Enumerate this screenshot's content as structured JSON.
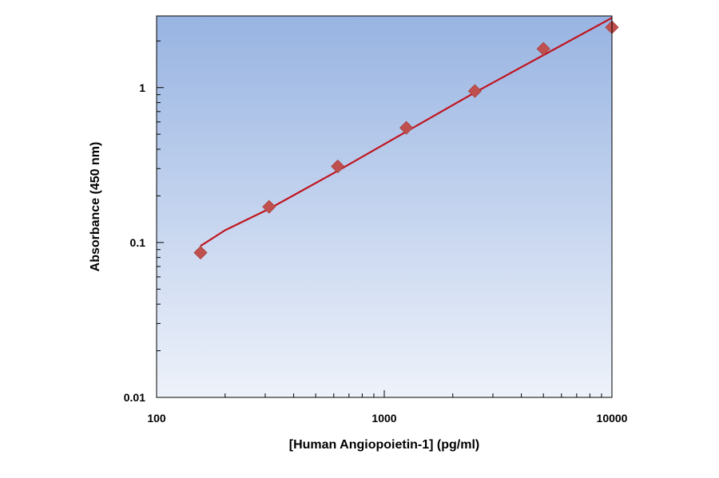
{
  "chart_data": {
    "type": "scatter",
    "title": "",
    "xlabel": "[Human Angiopoietin-1] (pg/ml)",
    "ylabel": "Absorbance (450 nm)",
    "x_scale": "log",
    "y_scale": "log",
    "xlim": [
      100,
      10000
    ],
    "ylim": [
      0.01,
      2.9
    ],
    "x_ticks": [
      100,
      1000,
      10000
    ],
    "x_tick_labels": [
      "100",
      "1000",
      "10000"
    ],
    "y_ticks": [
      0.01,
      0.1,
      1
    ],
    "y_tick_labels": [
      "0.01",
      "0.1",
      "1"
    ],
    "grid": false,
    "legend": "none",
    "colors": {
      "plot_bg_top": "#98b4e2",
      "plot_bg_bottom": "#eef2fa",
      "marker": "#c0504d",
      "line": "#c0141e"
    },
    "series": [
      {
        "marker": "diamond",
        "x": [
          156,
          312,
          625,
          1250,
          2500,
          5000,
          10000
        ],
        "y": [
          0.086,
          0.17,
          0.31,
          0.55,
          0.95,
          1.78,
          2.45
        ]
      }
    ],
    "fit_line": {
      "x": [
        156,
        200,
        312,
        625,
        1250,
        2500,
        5000,
        10000
      ],
      "y": [
        0.095,
        0.12,
        0.165,
        0.29,
        0.52,
        0.93,
        1.62,
        2.82
      ]
    }
  }
}
